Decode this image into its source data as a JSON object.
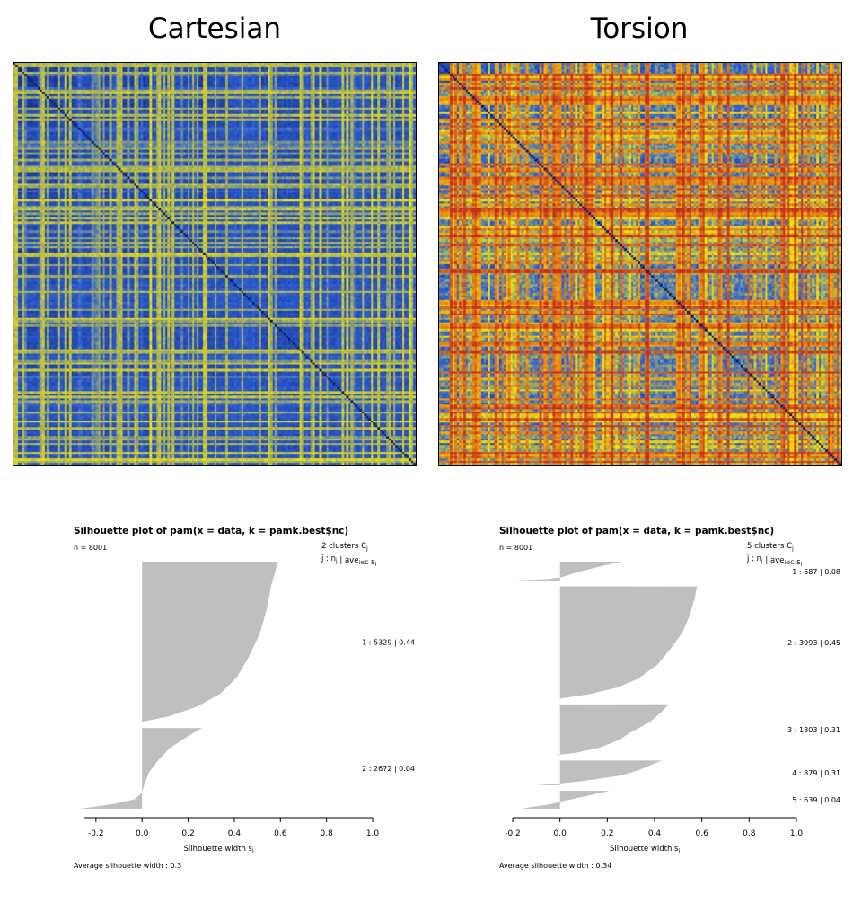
{
  "colors": {
    "heat_low": "#0d1f6e",
    "heat_blue": "#2f61d6",
    "heat_yellow": "#f4e40a",
    "heat_orange": "#e78d17",
    "heat_red": "#c4301e",
    "silhouette_fill": "#bfbfbf"
  },
  "panels": [
    {
      "title": "Cartesian",
      "heatmap_palette": [
        "heat_low",
        "heat_blue",
        "heat_yellow"
      ]
    },
    {
      "title": "Torsion",
      "heatmap_palette": [
        "heat_low",
        "heat_blue",
        "heat_yellow",
        "heat_orange",
        "heat_red"
      ]
    }
  ],
  "chart_data": [
    {
      "type": "heatmap",
      "title": "Cartesian",
      "description_colors": "blue (low) to yellow (high)"
    },
    {
      "type": "heatmap",
      "title": "Torsion",
      "description_colors": "blue (low) to yellow to red (high)"
    },
    {
      "type": "area",
      "title": "Silhouette plot of pam(x = data, k = pamk.best$nc)",
      "n_label": "n = 8001",
      "clusters_header": "2  clusters  C",
      "clusters_header_sub": "j",
      "clusters_row_header": "j :  n",
      "clusters_row_header_sub": "j",
      "clusters_row_header_rest": " | ave",
      "clusters_row_header_sub2": "i∈C",
      "clusters_row_header_end": "  s",
      "clusters_row_header_sub3": "i",
      "xlabel": "Silhouette width  s",
      "xlabel_sub": "i",
      "xlim": [
        -0.25,
        1.0
      ],
      "ticks": [
        "-0.2",
        "0.0",
        "0.2",
        "0.4",
        "0.6",
        "0.8",
        "1.0"
      ],
      "tick_values": [
        -0.2,
        0.0,
        0.2,
        0.4,
        0.6,
        0.8,
        1.0
      ],
      "footer": "Average silhouette width :  0.3",
      "clusters": [
        {
          "label": "1 :   5329  |  0.44",
          "n": 5329,
          "avg": 0.44,
          "profile": [
            [
              0,
              0.59
            ],
            [
              0.05,
              0.58
            ],
            [
              0.15,
              0.56
            ],
            [
              0.3,
              0.54
            ],
            [
              0.45,
              0.51
            ],
            [
              0.6,
              0.46
            ],
            [
              0.72,
              0.41
            ],
            [
              0.82,
              0.34
            ],
            [
              0.9,
              0.24
            ],
            [
              0.96,
              0.12
            ],
            [
              1,
              -0.02
            ]
          ]
        },
        {
          "label": "2 :   2672  |  0.04",
          "n": 2672,
          "avg": 0.04,
          "profile": [
            [
              0,
              0.26
            ],
            [
              0.1,
              0.2
            ],
            [
              0.25,
              0.12
            ],
            [
              0.4,
              0.07
            ],
            [
              0.55,
              0.03
            ],
            [
              0.7,
              0.01
            ],
            [
              0.8,
              -0.0
            ],
            [
              0.88,
              -0.03
            ],
            [
              0.94,
              -0.12
            ],
            [
              1,
              -0.27
            ]
          ]
        }
      ]
    },
    {
      "type": "area",
      "title": "Silhouette plot of pam(x = data, k = pamk.best$nc)",
      "n_label": "n = 8001",
      "clusters_header": "5  clusters  C",
      "clusters_header_sub": "j",
      "clusters_row_header": "j :  n",
      "clusters_row_header_sub": "j",
      "clusters_row_header_rest": " | ave",
      "clusters_row_header_sub2": "i∈C",
      "clusters_row_header_end": "  s",
      "clusters_row_header_sub3": "i",
      "xlabel": "Silhouette width  s",
      "xlabel_sub": "i",
      "xlim": [
        -0.2,
        1.0
      ],
      "ticks": [
        "-0.2",
        "0.0",
        "0.2",
        "0.4",
        "0.6",
        "0.8",
        "1.0"
      ],
      "tick_values": [
        -0.2,
        0.0,
        0.2,
        0.4,
        0.6,
        0.8,
        1.0
      ],
      "footer": "Average silhouette width :  0.34",
      "clusters": [
        {
          "label": "1 :   687  |  0.08",
          "n": 687,
          "avg": 0.08,
          "profile": [
            [
              0,
              0.26
            ],
            [
              0.3,
              0.15
            ],
            [
              0.6,
              0.06
            ],
            [
              0.8,
              0.01
            ],
            [
              0.9,
              -0.05
            ],
            [
              1,
              -0.24
            ]
          ]
        },
        {
          "label": "2 :   3993  |  0.45",
          "n": 3993,
          "avg": 0.45,
          "profile": [
            [
              0,
              0.58
            ],
            [
              0.1,
              0.57
            ],
            [
              0.25,
              0.55
            ],
            [
              0.4,
              0.52
            ],
            [
              0.55,
              0.47
            ],
            [
              0.7,
              0.41
            ],
            [
              0.82,
              0.33
            ],
            [
              0.9,
              0.24
            ],
            [
              0.96,
              0.12
            ],
            [
              1,
              -0.01
            ]
          ]
        },
        {
          "label": "3 :   1803  |  0.31",
          "n": 1803,
          "avg": 0.31,
          "profile": [
            [
              0,
              0.46
            ],
            [
              0.15,
              0.43
            ],
            [
              0.35,
              0.38
            ],
            [
              0.55,
              0.3
            ],
            [
              0.7,
              0.25
            ],
            [
              0.85,
              0.17
            ],
            [
              0.95,
              0.07
            ],
            [
              1,
              -0.02
            ]
          ]
        },
        {
          "label": "4 :   879  |  0.31",
          "n": 879,
          "avg": 0.31,
          "profile": [
            [
              0,
              0.43
            ],
            [
              0.2,
              0.38
            ],
            [
              0.4,
              0.33
            ],
            [
              0.6,
              0.26
            ],
            [
              0.8,
              0.12
            ],
            [
              0.92,
              0.01
            ],
            [
              1,
              -0.1
            ]
          ]
        },
        {
          "label": "5 :   639  |  0.04",
          "n": 639,
          "avg": 0.04,
          "profile": [
            [
              0,
              0.21
            ],
            [
              0.3,
              0.11
            ],
            [
              0.55,
              0.02
            ],
            [
              0.75,
              -0.04
            ],
            [
              0.9,
              -0.12
            ],
            [
              1,
              -0.16
            ]
          ]
        }
      ]
    }
  ]
}
